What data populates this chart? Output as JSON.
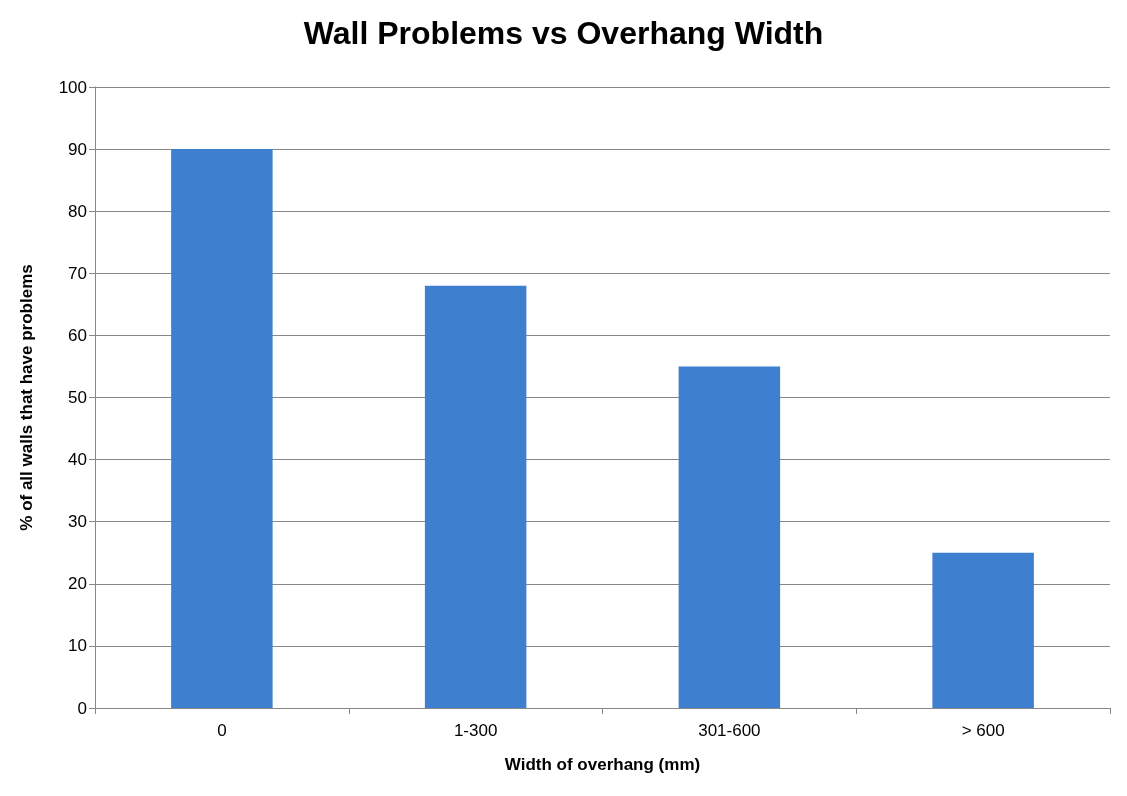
{
  "chart_data": {
    "type": "bar",
    "title": "Wall Problems vs Overhang Width",
    "xlabel": "Width of overhang (mm)",
    "ylabel": "% of all walls that have problems",
    "categories": [
      "0",
      "1-300",
      "301-600",
      "> 600"
    ],
    "values": [
      90,
      68,
      55,
      25
    ],
    "color": "#3f7fd0",
    "ylim": [
      0,
      100
    ],
    "yticks": [
      0,
      10,
      20,
      30,
      40,
      50,
      60,
      70,
      80,
      90,
      100
    ],
    "grid": "y"
  }
}
